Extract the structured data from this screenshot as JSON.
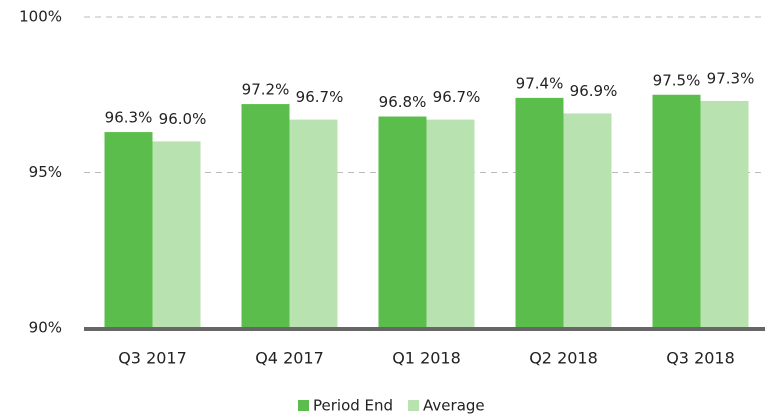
{
  "chart_data": {
    "type": "bar",
    "categories": [
      "Q3 2017",
      "Q4 2017",
      "Q1 2018",
      "Q2 2018",
      "Q3 2018"
    ],
    "series": [
      {
        "name": "Period End",
        "color": "#5bbd4c",
        "values": [
          96.3,
          97.2,
          96.8,
          97.4,
          97.5
        ],
        "value_labels": [
          "96.3%",
          "97.2%",
          "96.8%",
          "97.4%",
          "97.5%"
        ]
      },
      {
        "name": "Average",
        "color": "#b9e2b1",
        "values": [
          96.0,
          96.7,
          96.7,
          96.9,
          97.3
        ],
        "value_labels": [
          "96.0%",
          "96.7%",
          "96.7%",
          "96.9%",
          "97.3%"
        ]
      }
    ],
    "ylim": [
      90,
      100
    ],
    "yticks": [
      {
        "value": 90,
        "label": "90%"
      },
      {
        "value": 95,
        "label": "95%"
      },
      {
        "value": 100,
        "label": "100%"
      }
    ],
    "grid": true,
    "legend": "bottom"
  }
}
